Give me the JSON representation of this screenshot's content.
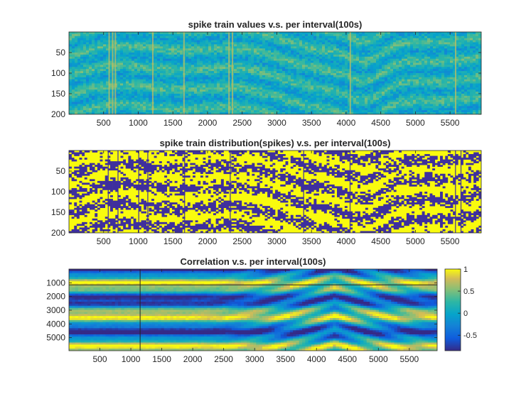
{
  "chart_data": [
    {
      "type": "heatmap",
      "title": "spike train values v.s. per interval(100s)",
      "xlim": [
        0,
        5950
      ],
      "ylim": [
        0,
        200
      ],
      "y_reversed": true,
      "x_ticks": [
        500,
        1000,
        1500,
        2000,
        2500,
        3000,
        3500,
        4000,
        4500,
        5000,
        5500
      ],
      "y_ticks": [
        50,
        100,
        150,
        200
      ],
      "x_tick_labels": [
        "500",
        "1000",
        "1500",
        "2000",
        "2500",
        "3000",
        "3500",
        "4000",
        "4500",
        "5000",
        "5500"
      ],
      "y_tick_labels": [
        "50",
        "100",
        "150",
        "200"
      ],
      "colormap": "parula",
      "dominant_colors": [
        "#1f9ed6",
        "#38b8c9",
        "#2c7be0",
        "#f5e21b"
      ],
      "bright_vertical_stripes_x": [
        570,
        620,
        660,
        1200,
        1650,
        2300,
        2350,
        4050,
        5570
      ]
    },
    {
      "type": "heatmap",
      "title": "spike train distribution(spikes) v.s. per interval(100s)",
      "xlim": [
        0,
        5950
      ],
      "ylim": [
        0,
        200
      ],
      "y_reversed": true,
      "x_ticks": [
        500,
        1000,
        1500,
        2000,
        2500,
        3000,
        3500,
        4000,
        4500,
        5000,
        5500
      ],
      "y_ticks": [
        50,
        100,
        150,
        200
      ],
      "x_tick_labels": [
        "500",
        "1000",
        "1500",
        "2000",
        "2500",
        "3000",
        "3500",
        "4000",
        "4500",
        "5000",
        "5500"
      ],
      "y_tick_labels": [
        "50",
        "100",
        "150",
        "200"
      ],
      "values_binary": [
        0,
        1
      ],
      "colors": {
        "0": "#3e2f9e",
        "1": "#f9fb0e"
      }
    },
    {
      "type": "heatmap",
      "title": "Correlation v.s. per interval(100s)",
      "xlim": [
        0,
        5950
      ],
      "ylim": [
        0,
        5950
      ],
      "y_reversed": true,
      "x_ticks": [
        500,
        1000,
        1500,
        2000,
        2500,
        3000,
        3500,
        4000,
        4500,
        5000,
        5500
      ],
      "y_ticks": [
        1000,
        2000,
        3000,
        4000,
        5000
      ],
      "x_tick_labels": [
        "500",
        "1000",
        "1500",
        "2000",
        "2500",
        "3000",
        "3500",
        "4000",
        "4500",
        "5000",
        "5500"
      ],
      "y_tick_labels": [
        "1000",
        "2000",
        "3000",
        "4000",
        "5000"
      ],
      "colorbar": {
        "range": [
          -0.85,
          1
        ],
        "ticks": [
          -0.5,
          0,
          0.5,
          1
        ],
        "tick_labels": [
          "-0.5",
          "0",
          "0.5",
          "1"
        ],
        "colormap": "parula"
      },
      "crossing_center_x": 4300
    }
  ]
}
